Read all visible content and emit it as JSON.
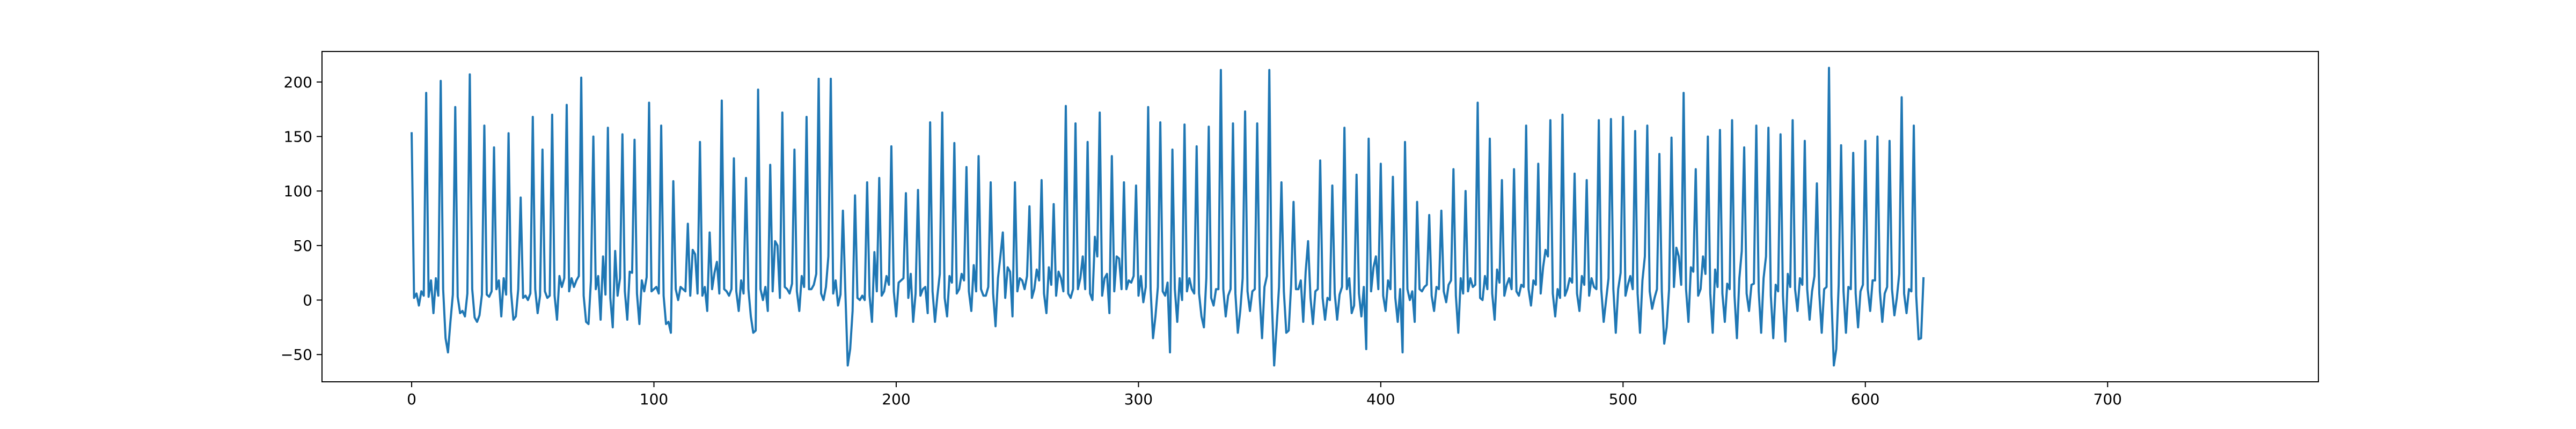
{
  "chart_data": {
    "type": "line",
    "title": "",
    "xlabel": "",
    "ylabel": "",
    "xlim": [
      -37,
      787
    ],
    "ylim": [
      -75,
      228
    ],
    "x_ticks": [
      0,
      100,
      200,
      300,
      400,
      500,
      600,
      700
    ],
    "y_ticks": [
      -50,
      0,
      50,
      100,
      150,
      200
    ],
    "grid": false,
    "legend": "none",
    "line_color": "#1f77b4",
    "series": [
      {
        "x_start": 0,
        "x_step": 1,
        "values": [
          153,
          2,
          6,
          -5,
          8,
          4,
          190,
          3,
          18,
          -12,
          20,
          4,
          201,
          10,
          -35,
          -48,
          -20,
          5,
          177,
          3,
          -12,
          -10,
          -15,
          6,
          207,
          10,
          -16,
          -20,
          -14,
          5,
          160,
          5,
          3,
          8,
          140,
          10,
          18,
          -15,
          20,
          5,
          153,
          8,
          -18,
          -15,
          10,
          94,
          2,
          4,
          0,
          6,
          168,
          10,
          -12,
          4,
          138,
          8,
          2,
          4,
          170,
          4,
          -18,
          22,
          12,
          20,
          179,
          8,
          20,
          12,
          18,
          22,
          204,
          4,
          -20,
          -22,
          18,
          150,
          10,
          22,
          -18,
          40,
          5,
          158,
          2,
          -25,
          45,
          4,
          20,
          152,
          8,
          -18,
          26,
          25,
          147,
          6,
          -22,
          18,
          8,
          21,
          181,
          8,
          10,
          12,
          6,
          160,
          4,
          -22,
          -20,
          -30,
          109,
          10,
          0,
          12,
          10,
          8,
          70,
          4,
          46,
          42,
          6,
          145,
          4,
          12,
          -10,
          62,
          10,
          25,
          35,
          6,
          183,
          10,
          8,
          4,
          10,
          130,
          8,
          -10,
          18,
          6,
          112,
          10,
          -15,
          -30,
          -28,
          193,
          10,
          0,
          12,
          -10,
          124,
          8,
          54,
          50,
          2,
          172,
          12,
          10,
          6,
          15,
          138,
          8,
          -10,
          22,
          12,
          168,
          10,
          10,
          14,
          24,
          203,
          6,
          0,
          12,
          40,
          203,
          6,
          18,
          -5,
          5,
          82,
          8,
          -60,
          -45,
          -10,
          96,
          2,
          0,
          4,
          0,
          108,
          4,
          -20,
          44,
          8,
          112,
          4,
          8,
          22,
          14,
          141,
          8,
          -15,
          16,
          18,
          20,
          98,
          2,
          24,
          -20,
          6,
          101,
          4,
          10,
          12,
          -12,
          163,
          8,
          -20,
          4,
          24,
          172,
          2,
          -15,
          22,
          16,
          144,
          6,
          10,
          24,
          18,
          122,
          8,
          -10,
          32,
          8,
          132,
          10,
          4,
          4,
          12,
          108,
          6,
          -24,
          20,
          40,
          62,
          2,
          30,
          26,
          -15,
          108,
          8,
          20,
          18,
          10,
          22,
          86,
          2,
          10,
          28,
          18,
          110,
          6,
          -12,
          30,
          14,
          88,
          4,
          26,
          20,
          8,
          178,
          6,
          2,
          10,
          162,
          10,
          20,
          40,
          10,
          145,
          6,
          0,
          58,
          40,
          172,
          4,
          20,
          24,
          -12,
          132,
          8,
          40,
          38,
          10,
          108,
          10,
          18,
          16,
          22,
          105,
          4,
          22,
          -2,
          12,
          177,
          10,
          -35,
          -15,
          12,
          163,
          8,
          4,
          16,
          -48,
          138,
          10,
          -20,
          20,
          0,
          161,
          8,
          20,
          10,
          6,
          141,
          6,
          -15,
          -25,
          20,
          159,
          2,
          -5,
          10,
          10,
          211,
          10,
          -15,
          4,
          10,
          162,
          6,
          -30,
          -10,
          20,
          173,
          8,
          -10,
          8,
          10,
          162,
          4,
          -35,
          12,
          22,
          211,
          2,
          -60,
          -25,
          12,
          108,
          8,
          -30,
          -28,
          14,
          90,
          10,
          10,
          18,
          -20,
          26,
          54,
          2,
          -22,
          8,
          10,
          128,
          2,
          -18,
          2,
          0,
          105,
          6,
          -18,
          5,
          12,
          158,
          10,
          20,
          -12,
          -5,
          115,
          6,
          -15,
          12,
          -45,
          148,
          8,
          30,
          40,
          10,
          125,
          4,
          -10,
          18,
          10,
          113,
          2,
          -20,
          10,
          -48,
          145,
          10,
          0,
          8,
          -20,
          90,
          10,
          8,
          12,
          14,
          78,
          4,
          -10,
          12,
          10,
          82,
          8,
          -2,
          14,
          18,
          120,
          4,
          -30,
          20,
          6,
          100,
          8,
          20,
          12,
          14,
          181,
          2,
          0,
          22,
          10,
          148,
          6,
          -18,
          28,
          16,
          110,
          4,
          14,
          20,
          10,
          120,
          8,
          4,
          14,
          12,
          160,
          10,
          -5,
          18,
          14,
          125,
          6,
          30,
          46,
          40,
          165,
          6,
          -15,
          10,
          2,
          170,
          4,
          10,
          20,
          16,
          116,
          6,
          -10,
          22,
          14,
          110,
          4,
          20,
          12,
          10,
          165,
          10,
          -20,
          0,
          20,
          166,
          10,
          -30,
          10,
          25,
          168,
          4,
          14,
          22,
          10,
          155,
          6,
          -30,
          18,
          40,
          160,
          8,
          -8,
          2,
          10,
          134,
          8,
          -40,
          -25,
          10,
          149,
          12,
          48,
          40,
          14,
          190,
          10,
          -20,
          30,
          26,
          120,
          4,
          10,
          40,
          24,
          150,
          6,
          -30,
          28,
          12,
          156,
          6,
          -20,
          15,
          10,
          165,
          4,
          -35,
          20,
          45,
          140,
          6,
          -10,
          14,
          15,
          160,
          8,
          -30,
          20,
          40,
          158,
          4,
          -35,
          14,
          8,
          152,
          4,
          -38,
          24,
          12,
          165,
          10,
          -10,
          20,
          14,
          146,
          10,
          -18,
          8,
          22,
          107,
          6,
          -30,
          10,
          12,
          213,
          4,
          -60,
          -45,
          14,
          142,
          8,
          -30,
          12,
          10,
          135,
          6,
          -25,
          8,
          14,
          146,
          10,
          -10,
          18,
          18,
          150,
          8,
          -20,
          6,
          12,
          146,
          10,
          -14,
          2,
          24,
          186,
          6,
          -12,
          10,
          8,
          160,
          4,
          -36,
          -35,
          20
        ]
      }
    ]
  }
}
